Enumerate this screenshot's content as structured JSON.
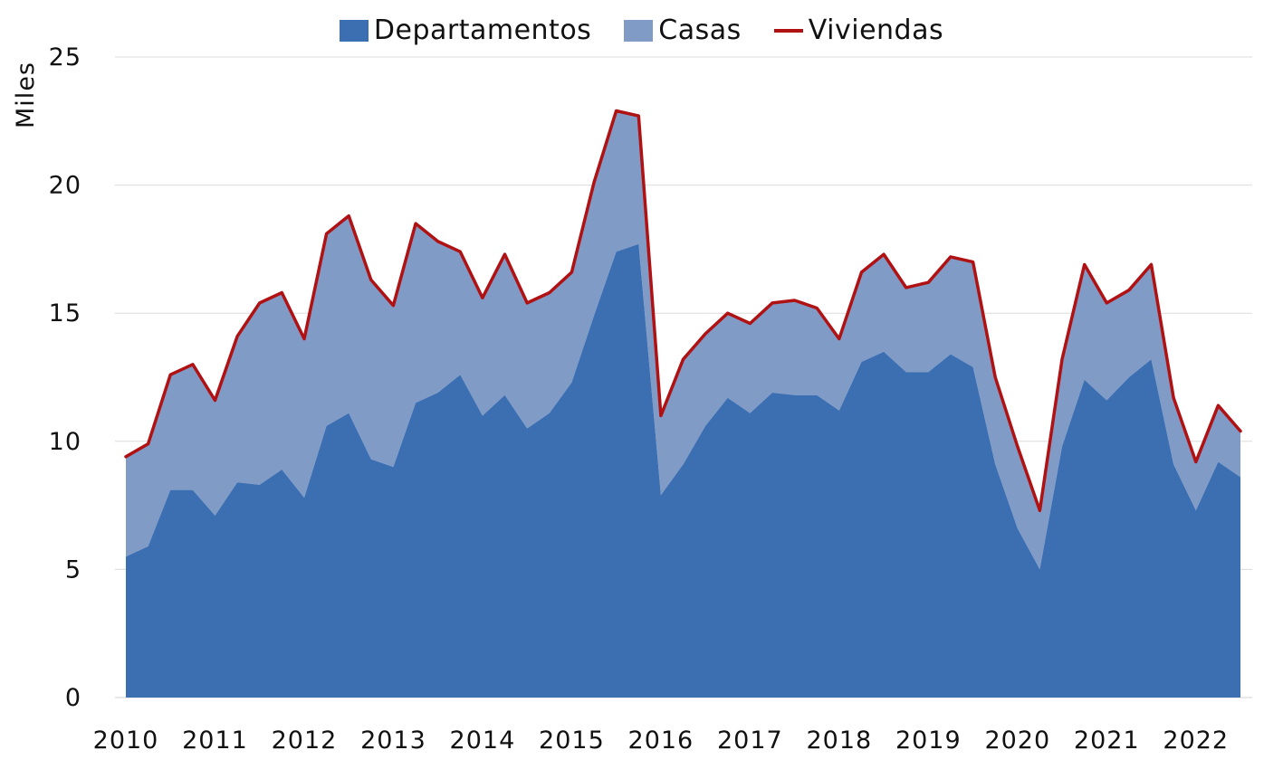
{
  "chart_data": {
    "type": "area",
    "title": "",
    "xlabel": "",
    "ylabel": "Miles",
    "ylim": [
      0,
      25
    ],
    "yticks": [
      "0",
      "5",
      "10",
      "15",
      "20",
      "25"
    ],
    "xticks": [
      "2010",
      "2011",
      "2012",
      "2013",
      "2014",
      "2015",
      "2016",
      "2017",
      "2018",
      "2019",
      "2020",
      "2021",
      "2022"
    ],
    "x_start": 2010,
    "x_step": 0.25,
    "grid": true,
    "legend": {
      "position": "top-center",
      "items": [
        {
          "name": "Departamentos",
          "color": "#3c6fb2",
          "kind": "area"
        },
        {
          "name": "Casas",
          "color": "#819bc7",
          "kind": "area"
        },
        {
          "name": "Viviendas",
          "color": "#b01113",
          "kind": "line"
        }
      ]
    },
    "series": [
      {
        "name": "Departamentos",
        "values": [
          5.5,
          5.9,
          8.1,
          8.1,
          7.1,
          8.4,
          8.3,
          8.9,
          7.8,
          10.6,
          11.1,
          9.3,
          9.0,
          11.5,
          11.9,
          12.6,
          11.0,
          11.8,
          10.5,
          11.1,
          12.3,
          14.9,
          17.4,
          17.7,
          7.9,
          9.1,
          10.6,
          11.7,
          11.1,
          11.9,
          11.8,
          11.8,
          11.2,
          13.1,
          13.5,
          12.7,
          12.7,
          13.4,
          12.9,
          9.1,
          6.6,
          5.0,
          9.8,
          12.4,
          11.6,
          12.5,
          13.2,
          9.1,
          7.3,
          9.2,
          8.6
        ]
      },
      {
        "name": "Casas",
        "values": [
          3.9,
          4.0,
          4.5,
          4.9,
          4.5,
          5.7,
          7.1,
          6.9,
          6.2,
          7.5,
          7.7,
          7.0,
          6.3,
          7.0,
          5.9,
          4.8,
          4.6,
          5.5,
          4.9,
          4.7,
          4.3,
          5.2,
          5.5,
          5.0,
          3.1,
          4.1,
          3.6,
          3.3,
          3.5,
          3.5,
          3.7,
          3.4,
          2.8,
          3.5,
          3.8,
          3.3,
          3.5,
          3.8,
          4.1,
          3.4,
          3.2,
          2.3,
          3.4,
          4.5,
          3.8,
          3.4,
          3.7,
          2.6,
          1.9,
          2.2,
          1.8
        ]
      },
      {
        "name": "Viviendas",
        "values": [
          9.4,
          9.9,
          12.6,
          13.0,
          11.6,
          14.1,
          15.4,
          15.8,
          14.0,
          18.1,
          18.8,
          16.3,
          15.3,
          18.5,
          17.8,
          17.4,
          15.6,
          17.3,
          15.4,
          15.8,
          16.6,
          20.1,
          22.9,
          22.7,
          11.0,
          13.2,
          14.2,
          15.0,
          14.6,
          15.4,
          15.5,
          15.2,
          14.0,
          16.6,
          17.3,
          16.0,
          16.2,
          17.2,
          17.0,
          12.5,
          9.8,
          7.3,
          13.2,
          16.9,
          15.4,
          15.9,
          16.9,
          11.7,
          9.2,
          11.4,
          10.4
        ]
      }
    ]
  }
}
